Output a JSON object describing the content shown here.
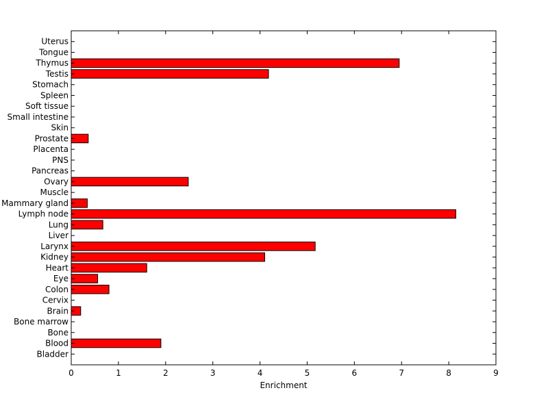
{
  "chart_data": {
    "type": "bar",
    "orientation": "horizontal",
    "categories": [
      "Bladder",
      "Blood",
      "Bone",
      "Bone marrow",
      "Brain",
      "Cervix",
      "Colon",
      "Eye",
      "Heart",
      "Kidney",
      "Larynx",
      "Liver",
      "Lung",
      "Lymph node",
      "Mammary gland",
      "Muscle",
      "Ovary",
      "Pancreas",
      "PNS",
      "Placenta",
      "Prostate",
      "Skin",
      "Small intestine",
      "Soft tissue",
      "Spleen",
      "Stomach",
      "Testis",
      "Thymus",
      "Tongue",
      "Uterus"
    ],
    "values": [
      0,
      1.9,
      0,
      0,
      0.2,
      0,
      0.8,
      0.56,
      1.6,
      4.1,
      5.17,
      0,
      0.67,
      8.15,
      0.34,
      0,
      2.48,
      0,
      0,
      0,
      0.36,
      0,
      0,
      0,
      0,
      0,
      4.18,
      6.95,
      0,
      0
    ],
    "xlabel": "Enrichment",
    "ylabel": "",
    "title": "",
    "xlim": [
      0,
      9
    ],
    "xticks": [
      "0",
      "1",
      "2",
      "3",
      "4",
      "5",
      "6",
      "7",
      "8",
      "9"
    ],
    "bar_color": "#ff0000",
    "bar_edge_color": "#000000",
    "grid": false
  }
}
